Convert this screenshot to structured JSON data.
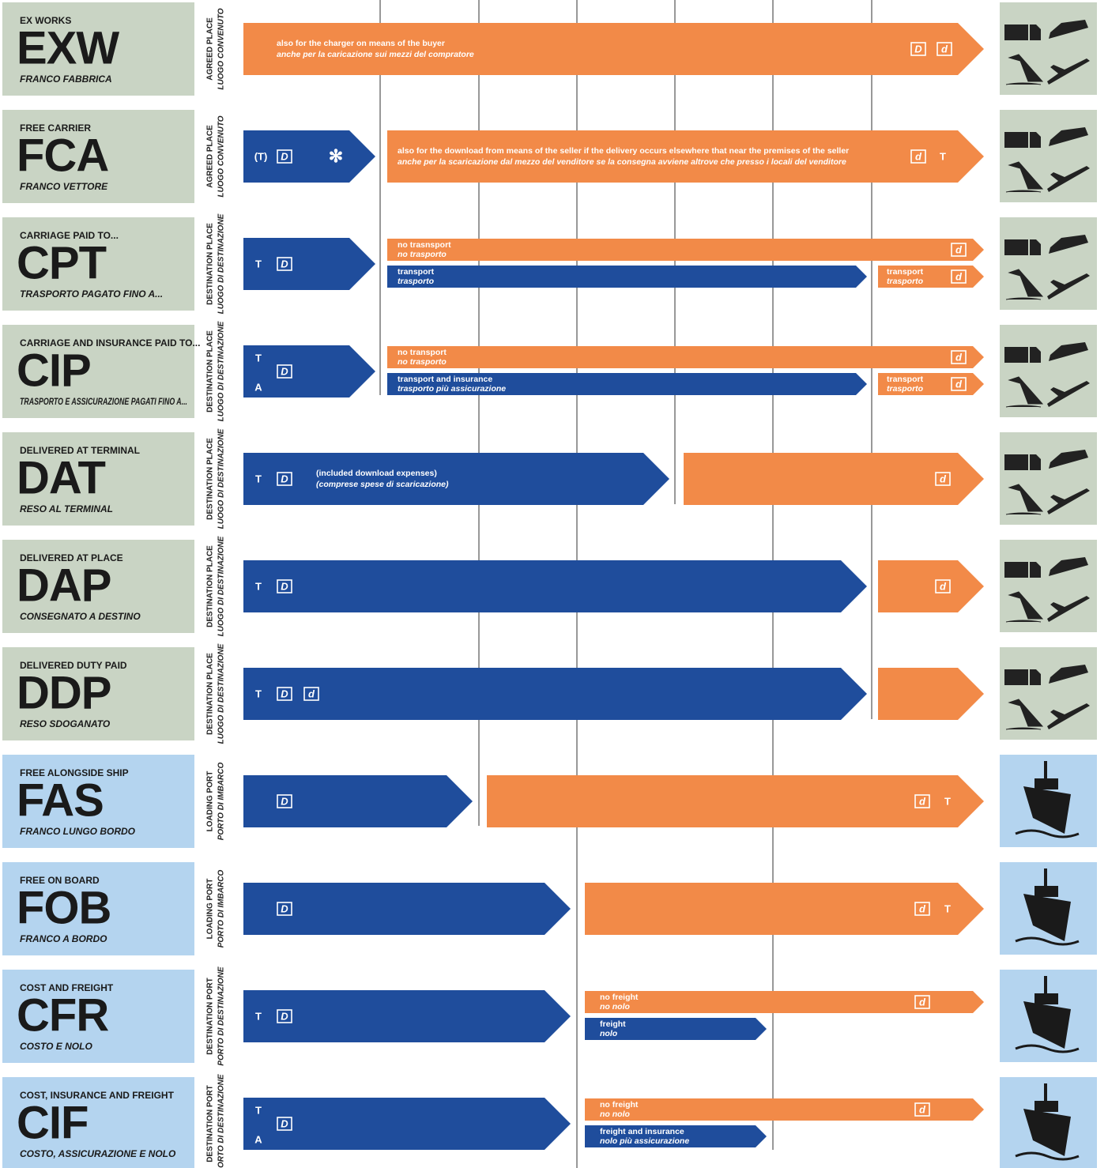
{
  "rows": [
    {
      "term_en": "EX WORKS",
      "code": "EXW",
      "term_it": "FRANCO FABBRICA",
      "place_en": "AGREED PLACE",
      "place_it": "LUOGO CONVENUTO",
      "arrows": [
        {
          "lines": [
            "also for the charger on means of the buyer",
            "anche per la caricazione sui mezzi del compratore"
          ],
          "boxed": [
            "D",
            "d"
          ],
          "plain": []
        }
      ]
    },
    {
      "term_en": "FREE CARRIER",
      "code": "FCA",
      "term_it": "FRANCO VETTORE",
      "place_en": "AGREED PLACE",
      "place_it": "LUOGO CONVENUTO",
      "arrows": [
        {
          "lines": [],
          "boxed": [
            "D"
          ],
          "plain": [
            "(T)",
            "✻"
          ]
        },
        {
          "lines": [
            "also for the download from means of the seller if the delivery occurs elsewhere that near the premises of the seller",
            "anche per la scaricazione dal mezzo del venditore se la consegna avviene altrove che presso i locali del venditore"
          ],
          "boxed": [
            "d"
          ],
          "plain": [
            "T"
          ]
        }
      ]
    },
    {
      "term_en": "CARRIAGE PAID TO...",
      "code": "CPT",
      "term_it": "TRASPORTO PAGATO FINO A...",
      "place_en": "DESTINATION PLACE",
      "place_it": "LUOGO DI DESTINAZIONE",
      "arrows": [
        {
          "lines": [],
          "boxed": [
            "D"
          ],
          "plain": [
            "T"
          ]
        },
        {
          "lines": [
            "no trasnsport",
            "no trasporto"
          ],
          "boxed": [
            "d"
          ],
          "plain": []
        },
        {
          "lines": [
            "transport",
            "trasporto"
          ],
          "boxed": [],
          "plain": []
        },
        {
          "lines": [
            "transport",
            "trasporto"
          ],
          "boxed": [
            "d"
          ],
          "plain": []
        }
      ]
    },
    {
      "term_en": "CARRIAGE AND INSURANCE PAID TO...",
      "code": "CIP",
      "term_it": "TRASPORTO E ASSICURAZIONE PAGATI FINO A...",
      "place_en": "DESTINATION PLACE",
      "place_it": "LUOGO DI DESTINAZIONE",
      "arrows": [
        {
          "lines": [],
          "boxed": [
            "D"
          ],
          "plain": [
            "T",
            "A"
          ]
        },
        {
          "lines": [
            "no transport",
            "no trasporto"
          ],
          "boxed": [
            "d"
          ],
          "plain": []
        },
        {
          "lines": [
            "transport and insurance",
            "trasporto più assicurazione"
          ],
          "boxed": [],
          "plain": []
        },
        {
          "lines": [
            "transport",
            "trasporto"
          ],
          "boxed": [
            "d"
          ],
          "plain": []
        }
      ]
    },
    {
      "term_en": "DELIVERED AT TERMINAL",
      "code": "DAT",
      "term_it": "RESO AL TERMINAL",
      "place_en": "DESTINATION PLACE",
      "place_it": "LUOGO DI DESTINAZIONE",
      "arrows": [
        {
          "lines": [
            "(included download expenses)",
            "(comprese spese di scaricazione)"
          ],
          "boxed": [
            "D"
          ],
          "plain": [
            "T"
          ]
        },
        {
          "lines": [],
          "boxed": [
            "d"
          ],
          "plain": []
        }
      ]
    },
    {
      "term_en": "DELIVERED AT PLACE",
      "code": "DAP",
      "term_it": "CONSEGNATO A DESTINO",
      "place_en": "DESTINATION PLACE",
      "place_it": "LUOGO DI DESTINAZIONE",
      "arrows": [
        {
          "lines": [],
          "boxed": [
            "D"
          ],
          "plain": [
            "T"
          ]
        },
        {
          "lines": [],
          "boxed": [
            "d"
          ],
          "plain": []
        }
      ]
    },
    {
      "term_en": "DELIVERED DUTY PAID",
      "code": "DDP",
      "term_it": "RESO SDOGANATO",
      "place_en": "DESTINATION PLACE",
      "place_it": "LUOGO DI DESTINAZIONE",
      "arrows": [
        {
          "lines": [],
          "boxed": [
            "D",
            "d"
          ],
          "plain": [
            "T"
          ]
        },
        {
          "lines": [],
          "boxed": [],
          "plain": []
        }
      ]
    },
    {
      "term_en": "FREE ALONGSIDE SHIP",
      "code": "FAS",
      "term_it": "FRANCO LUNGO BORDO",
      "place_en": "LOADING PORT",
      "place_it": "PORTO DI IMBARCO",
      "arrows": [
        {
          "lines": [],
          "boxed": [
            "D"
          ],
          "plain": []
        },
        {
          "lines": [],
          "boxed": [
            "d"
          ],
          "plain": [
            "T"
          ]
        }
      ]
    },
    {
      "term_en": "FREE ON BOARD",
      "code": "FOB",
      "term_it": "FRANCO A BORDO",
      "place_en": "LOADING PORT",
      "place_it": "PORTO DI IMBARCO",
      "arrows": [
        {
          "lines": [],
          "boxed": [
            "D"
          ],
          "plain": []
        },
        {
          "lines": [],
          "boxed": [
            "d"
          ],
          "plain": [
            "T"
          ]
        }
      ]
    },
    {
      "term_en": "COST AND FREIGHT",
      "code": "CFR",
      "term_it": "COSTO E NOLO",
      "place_en": "DESTINATION PORT",
      "place_it": "PORTO DI DESTINAZIONE",
      "arrows": [
        {
          "lines": [],
          "boxed": [
            "D"
          ],
          "plain": [
            "T"
          ]
        },
        {
          "lines": [
            "no freight",
            "no nolo"
          ],
          "boxed": [
            "d"
          ],
          "plain": []
        },
        {
          "lines": [
            "freight",
            "nolo"
          ],
          "boxed": [],
          "plain": []
        }
      ]
    },
    {
      "term_en": "COST, INSURANCE AND FREIGHT",
      "code": "CIF",
      "term_it": "COSTO, ASSICURAZIONE E NOLO",
      "place_en": "DESTINATION PORT",
      "place_it": "PORTO DI DESTINAZIONE",
      "arrows": [
        {
          "lines": [],
          "boxed": [
            "D"
          ],
          "plain": [
            "T",
            "A"
          ]
        },
        {
          "lines": [
            "no freight",
            "no nolo"
          ],
          "boxed": [
            "d"
          ],
          "plain": []
        },
        {
          "lines": [
            "freight and insurance",
            "nolo più assicurazione"
          ],
          "boxed": [],
          "plain": []
        }
      ]
    }
  ]
}
